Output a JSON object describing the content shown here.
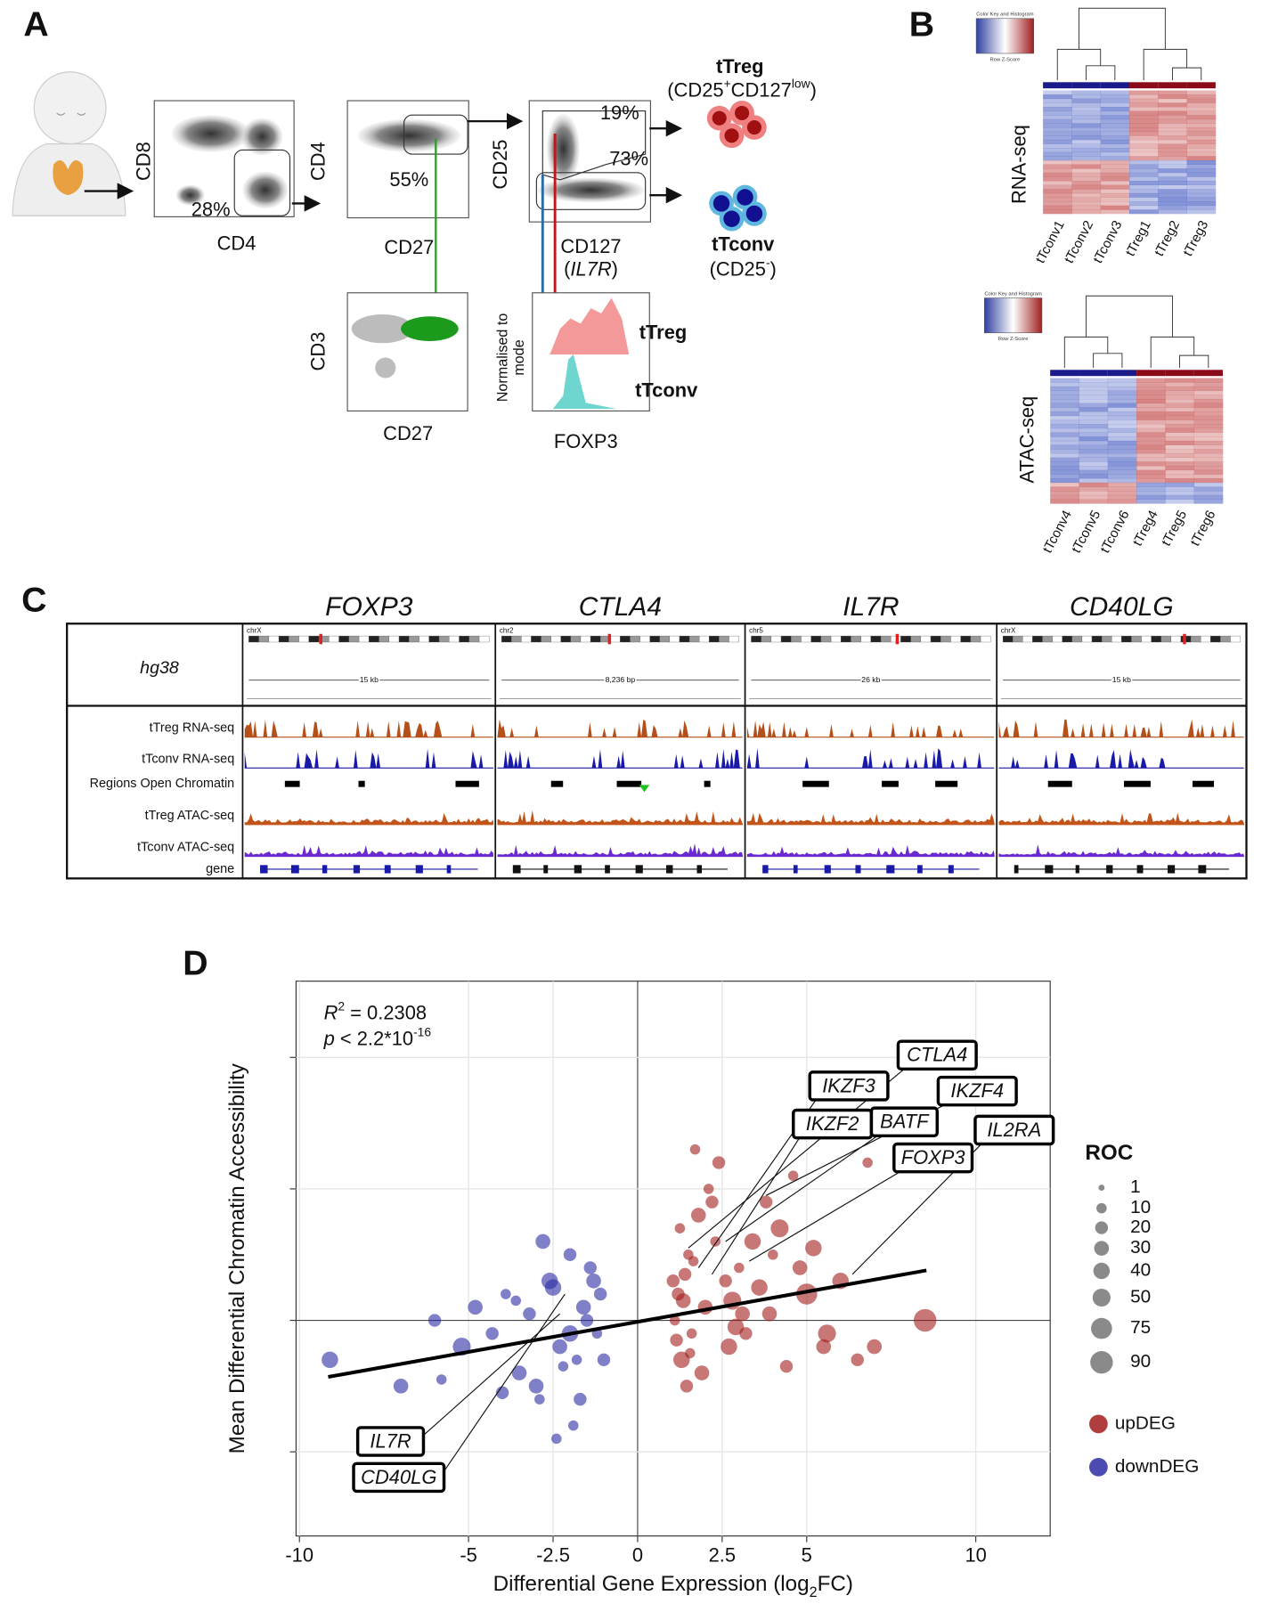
{
  "panel_a": {
    "letter": "A",
    "plot1_y": "CD8",
    "plot1_x": "CD4",
    "plot1_gate": "28%",
    "plot2_y": "CD4",
    "plot2_x": "CD27",
    "plot2_gate": "55%",
    "plot3_y": "CD25",
    "plot3_x": "CD127",
    "plot3_x_gene": "IL7R",
    "plot3_gate_top": "19%",
    "plot3_gate_bottom": "73%",
    "plot4_y": "CD3",
    "plot4_x": "CD27",
    "hist_y": [
      "Normalised to",
      "mode"
    ],
    "hist_x": "FOXP3",
    "hist_treg": "tTreg",
    "hist_tconv": "tTconv",
    "treg": "tTreg",
    "treg_def": [
      "(CD25",
      "+",
      "CD127",
      "low",
      ")"
    ],
    "tconv": "tTconv",
    "tconv_def": [
      "(CD25",
      "-",
      ")"
    ]
  },
  "panel_b": {
    "letter": "B",
    "color_key": "Color Key and Histogram",
    "row_z": "Row Z-Score",
    "heatmaps": [
      {
        "label": "RNA-seq",
        "samples": [
          "tTconv1",
          "tTconv2",
          "tTconv3",
          "tTreg1",
          "tTreg2",
          "tTreg3"
        ]
      },
      {
        "label": "ATAC-seq",
        "samples": [
          "tTconv4",
          "tTconv5",
          "tTconv6",
          "tTreg4",
          "tTreg5",
          "tTreg6"
        ]
      }
    ]
  },
  "panel_c": {
    "letter": "C",
    "genome": "hg38",
    "genes": [
      {
        "name": "FOXP3",
        "chrom": "chrX",
        "scale": "15 kb"
      },
      {
        "name": "CTLA4",
        "chrom": "chr2",
        "scale": "8,236 bp"
      },
      {
        "name": "IL7R",
        "chrom": "chr5",
        "scale": "26 kb"
      },
      {
        "name": "CD40LG",
        "chrom": "chrX",
        "scale": "15 kb"
      }
    ],
    "tracks": [
      "tTreg RNA-seq",
      "tTconv RNA-seq",
      "Regions Open Chromatin",
      "tTreg ATAC-seq",
      "tTconv ATAC-seq",
      "gene"
    ]
  },
  "chart_data": {
    "type": "scatter",
    "letter": "D",
    "xlabel": "Differential Gene Expression (log",
    "xlabel_sub": "2",
    "xlabel_end": "FC)",
    "ylabel": "Mean Differential Chromatin Accessibility",
    "xlim": [
      -10.1,
      12.2
    ],
    "ylim": [
      -1.64,
      2.58
    ],
    "xticks": [
      -10,
      -5,
      -2.5,
      0,
      2.5,
      5,
      10
    ],
    "ygrid": [
      -1,
      0,
      1,
      2
    ],
    "grid": true,
    "stats": {
      "r": "R",
      "r_sup": "2",
      "r_val": " = 0.2308",
      "p": "p",
      "p_val": " < 2.2*10",
      "p_sup": "-16"
    },
    "size_legend_title": "ROC",
    "size_legend": [
      1,
      10,
      20,
      30,
      40,
      50,
      75,
      90
    ],
    "series": [
      {
        "name": "upDEG",
        "color": "#a31c1c",
        "x": [
          1.2,
          1.5,
          1.8,
          2.1,
          2.4,
          1.3,
          1.6,
          2.0,
          2.6,
          3.0,
          3.4,
          3.8,
          4.2,
          4.6,
          5.0,
          5.5,
          6.0,
          6.5,
          7.0,
          8.5,
          1.1,
          1.4,
          1.9,
          2.3,
          2.8,
          3.2,
          3.6,
          4.0,
          4.8,
          5.6,
          1.7,
          2.2,
          2.7,
          3.1,
          1.25,
          1.45,
          6.8,
          5.2,
          1.15,
          1.35,
          1.55,
          1.05,
          2.9,
          3.9,
          4.4,
          1.65
        ],
        "y": [
          0.2,
          0.5,
          0.8,
          1.0,
          1.2,
          -0.3,
          -0.1,
          0.1,
          0.3,
          0.4,
          0.6,
          0.9,
          0.7,
          1.1,
          0.2,
          -0.2,
          0.3,
          -0.3,
          -0.2,
          0.0,
          0.0,
          0.35,
          -0.4,
          0.6,
          0.15,
          -0.1,
          0.25,
          0.5,
          0.4,
          -0.1,
          1.3,
          0.9,
          -0.2,
          0.05,
          0.7,
          -0.5,
          1.2,
          0.55,
          -0.15,
          0.15,
          -0.25,
          0.3,
          -0.05,
          0.05,
          -0.35,
          0.45
        ],
        "size": [
          20,
          10,
          30,
          10,
          20,
          40,
          10,
          30,
          20,
          10,
          40,
          20,
          50,
          10,
          75,
          30,
          40,
          20,
          30,
          90,
          10,
          20,
          30,
          10,
          50,
          20,
          40,
          10,
          30,
          50,
          10,
          20,
          40,
          30,
          10,
          20,
          10,
          40,
          20,
          30,
          10,
          20,
          40,
          30,
          20,
          10
        ]
      },
      {
        "name": "downDEG",
        "color": "#2b2ba3",
        "x": [
          -9.1,
          -7.0,
          -6.0,
          -5.2,
          -4.8,
          -4.3,
          -3.9,
          -3.5,
          -3.2,
          -2.9,
          -2.6,
          -2.3,
          -2.0,
          -1.8,
          -1.6,
          -1.4,
          -1.2,
          -1.1,
          -3.0,
          -2.5,
          -1.9,
          -1.5,
          -4.0,
          -2.8,
          -2.2,
          -1.7,
          -1.3,
          -3.6,
          -2.0,
          -1.0,
          -5.8,
          -2.4
        ],
        "y": [
          -0.3,
          -0.5,
          0.0,
          -0.2,
          0.1,
          -0.1,
          0.2,
          -0.4,
          0.05,
          -0.6,
          0.3,
          -0.2,
          0.5,
          -0.3,
          0.1,
          0.4,
          -0.1,
          0.2,
          -0.5,
          0.25,
          -0.8,
          0.0,
          -0.55,
          0.6,
          -0.35,
          -0.6,
          0.3,
          0.15,
          -0.1,
          -0.3,
          -0.45,
          -0.9
        ],
        "size": [
          40,
          30,
          20,
          50,
          30,
          20,
          10,
          30,
          20,
          10,
          40,
          30,
          20,
          10,
          30,
          20,
          10,
          20,
          30,
          40,
          10,
          20,
          20,
          30,
          10,
          20,
          30,
          10,
          40,
          20,
          10,
          10
        ]
      }
    ],
    "fit": {
      "x": [
        -9.15,
        8.54
      ],
      "y": [
        -0.43,
        0.38
      ]
    },
    "annotations": [
      {
        "text": "CTLA4",
        "x": 1.5,
        "y": 0.55
      },
      {
        "text": "IKZF3",
        "x": 1.8,
        "y": 0.4
      },
      {
        "text": "IKZF4",
        "x": 3.8,
        "y": 0.95
      },
      {
        "text": "IKZF2",
        "x": 2.2,
        "y": 0.35
      },
      {
        "text": "BATF",
        "x": 2.6,
        "y": 0.6
      },
      {
        "text": "IL2RA",
        "x": 6.35,
        "y": 0.35
      },
      {
        "text": "FOXP3",
        "x": 3.3,
        "y": 0.45
      },
      {
        "text": "IL7R",
        "x": -2.3,
        "y": 0.05
      },
      {
        "text": "CD40LG",
        "x": -2.15,
        "y": 0.2
      }
    ]
  }
}
